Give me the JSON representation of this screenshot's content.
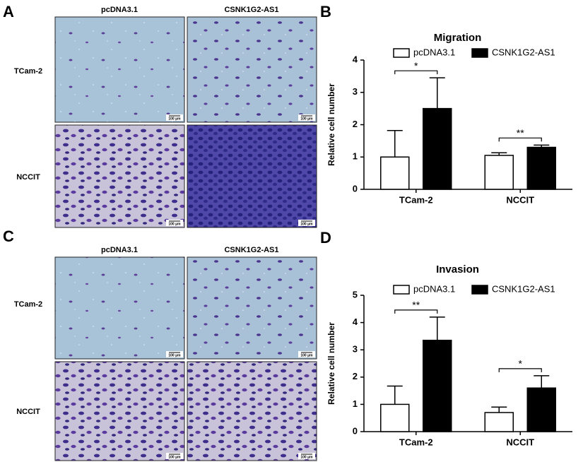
{
  "panels": {
    "A": {
      "label": "A",
      "columns": [
        "pcDNA3.1",
        "CSNK1G2-AS1"
      ],
      "rows": [
        "TCam-2",
        "NCCIT"
      ]
    },
    "C": {
      "label": "C",
      "columns": [
        "pcDNA3.1",
        "CSNK1G2-AS1"
      ],
      "rows": [
        "TCam-2",
        "NCCIT"
      ]
    },
    "scale_bar": "100 μm"
  },
  "chart_data": [
    {
      "type": "bar",
      "label": "B",
      "title": "Migration",
      "ylabel": "Relative cell number",
      "categories": [
        "TCam-2",
        "NCCIT"
      ],
      "series": [
        {
          "name": "pcDNA3.1",
          "color": "#ffffff",
          "values": [
            1.0,
            1.05
          ],
          "errors": [
            0.82,
            0.08
          ]
        },
        {
          "name": "CSNK1G2-AS1",
          "color": "#000000",
          "values": [
            2.5,
            1.3
          ],
          "errors": [
            0.95,
            0.07
          ]
        }
      ],
      "significance": [
        "*",
        "**"
      ],
      "ylim": [
        0,
        4
      ],
      "yticks": [
        0,
        1,
        2,
        3,
        4
      ]
    },
    {
      "type": "bar",
      "label": "D",
      "title": "Invasion",
      "ylabel": "Relative cell number",
      "categories": [
        "TCam-2",
        "NCCIT"
      ],
      "series": [
        {
          "name": "pcDNA3.1",
          "color": "#ffffff",
          "values": [
            1.0,
            0.7
          ],
          "errors": [
            0.67,
            0.2
          ]
        },
        {
          "name": "CSNK1G2-AS1",
          "color": "#000000",
          "values": [
            3.35,
            1.6
          ],
          "errors": [
            0.85,
            0.45
          ]
        }
      ],
      "significance": [
        "**",
        "*"
      ],
      "ylim": [
        0,
        5
      ],
      "yticks": [
        0,
        1,
        2,
        3,
        4,
        5
      ]
    }
  ]
}
